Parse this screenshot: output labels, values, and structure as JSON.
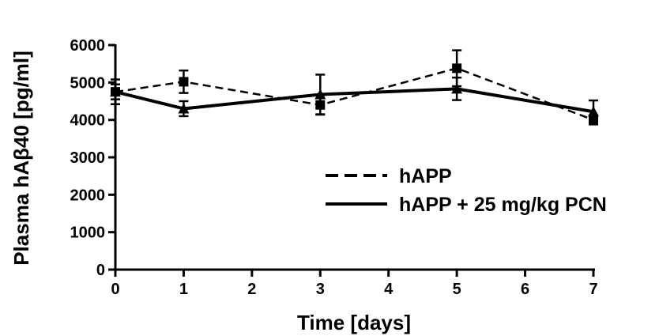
{
  "chart_data": {
    "type": "line",
    "title": "",
    "xlabel": "Time [days]",
    "ylabel": "Plasma hAβ40 [pg/ml]",
    "xlim": [
      0,
      7
    ],
    "ylim": [
      0,
      6000
    ],
    "xticks": [
      0,
      1,
      2,
      3,
      4,
      5,
      6,
      7
    ],
    "yticks": [
      0,
      1000,
      2000,
      3000,
      4000,
      5000,
      6000
    ],
    "grid": false,
    "legend_position": "center-right",
    "series": [
      {
        "name": "hAPP",
        "line_style": "dashed",
        "marker": "square",
        "color": "#000000",
        "x": [
          0,
          1,
          3,
          5,
          7
        ],
        "y": [
          4750,
          5020,
          4400,
          5380,
          4000
        ],
        "error": [
          330,
          300,
          260,
          480,
          120
        ]
      },
      {
        "name": "hAPP + 25 mg/kg PCN",
        "line_style": "solid",
        "marker": "triangle",
        "color": "#000000",
        "x": [
          0,
          1,
          3,
          5,
          7
        ],
        "y": [
          4750,
          4300,
          4680,
          4830,
          4220
        ],
        "error": [
          200,
          200,
          530,
          300,
          300
        ]
      }
    ]
  }
}
